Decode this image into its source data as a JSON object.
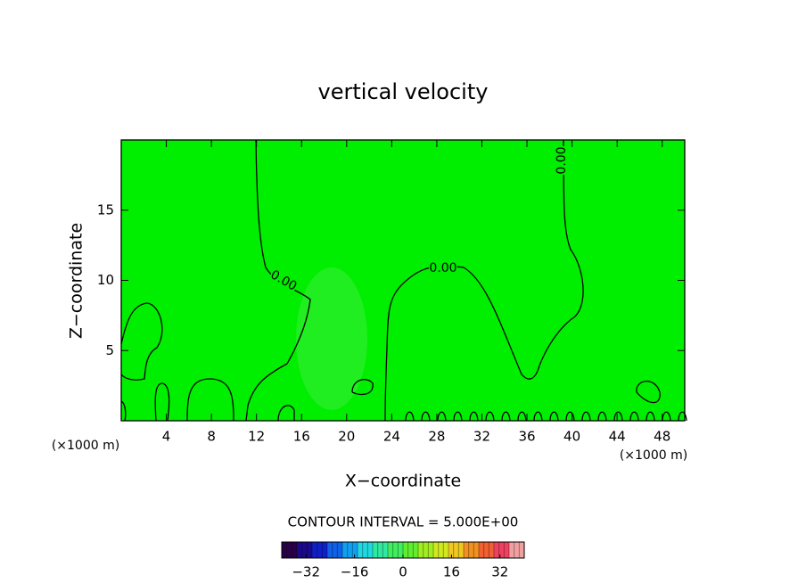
{
  "chart_data": {
    "type": "contour",
    "title": "vertical velocity",
    "x_label": "X−coordinate",
    "y_label": "Z−coordinate",
    "unit_label": "(×1000 m)",
    "xlim": [
      0,
      50
    ],
    "xticks": [
      4,
      8,
      12,
      16,
      20,
      24,
      28,
      32,
      36,
      40,
      44,
      48
    ],
    "ylim": [
      0,
      20
    ],
    "yticks": [
      5,
      10,
      15
    ],
    "field_color": "#00ee00",
    "contours": [
      {
        "level": 0,
        "label": "0.00"
      }
    ],
    "contour_interval_text": "CONTOUR INTERVAL = 5.000E+00",
    "colorbar": {
      "lim": [
        -40,
        40
      ],
      "ticks": [
        {
          "value": -32,
          "label": "−32"
        },
        {
          "value": -16,
          "label": "−16"
        },
        0,
        16,
        32
      ],
      "colors": [
        "#2a0048",
        "#1a0a8a",
        "#1020c8",
        "#1060e8",
        "#10a0f0",
        "#20d8e0",
        "#30e8a0",
        "#40ee60",
        "#60ee30",
        "#a0ee20",
        "#d0e820",
        "#f0c820",
        "#f09020",
        "#f06030",
        "#f04060",
        "#f0a0a0"
      ]
    }
  }
}
